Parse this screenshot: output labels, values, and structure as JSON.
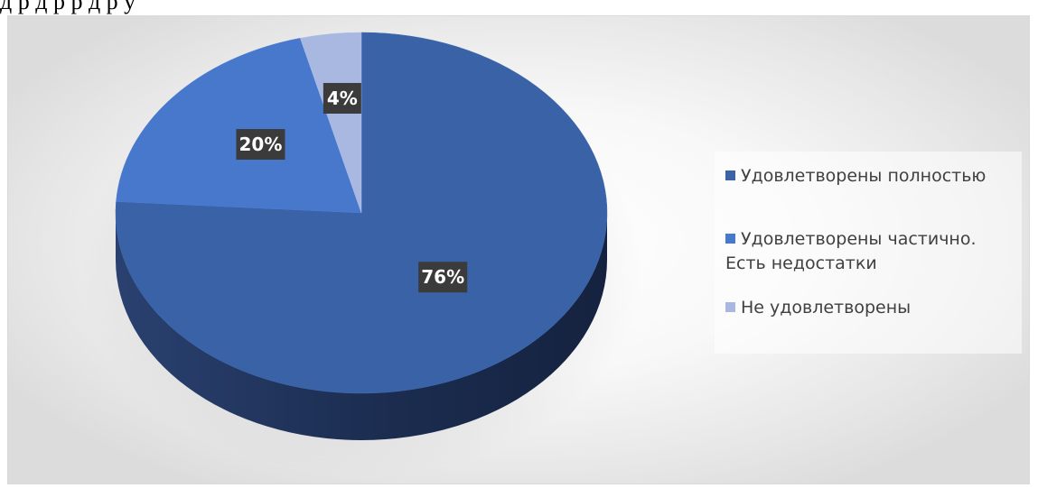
{
  "caption_fragment": "д       р         д                      р              р  д               р  у",
  "chart_data": {
    "type": "pie",
    "title": "",
    "series": [
      {
        "name": "Удовлетворены полностью",
        "value": 76,
        "label": "76%",
        "color": "#3a62a7"
      },
      {
        "name": "Удовлетворены частично. Есть недостатки",
        "value": 20,
        "label": "20%",
        "color": "#4878cc"
      },
      {
        "name": "Не удовлетворены",
        "value": 4,
        "label": "4%",
        "color": "#a8b8e0"
      }
    ],
    "legend_position": "right",
    "three_d": true,
    "data_label_style": {
      "background": "#3b3b3b",
      "text_color": "#ffffff"
    }
  }
}
